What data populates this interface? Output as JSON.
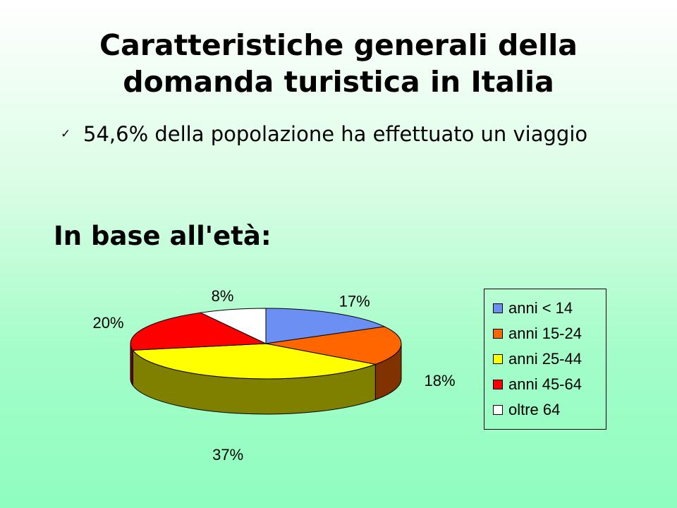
{
  "title": "Caratteristiche generali della domanda turistica in Italia",
  "bullet": {
    "icon": "check-icon",
    "text": "54,6% della popolazione ha effettuato un viaggio"
  },
  "subheading": "In base all'età:",
  "chart_data": {
    "type": "pie",
    "style": "3d",
    "categories": [
      "anni < 14",
      "anni 15-24",
      "anni 25-44",
      "anni 45-64",
      "oltre 64"
    ],
    "values": [
      17,
      18,
      37,
      20,
      8
    ],
    "labels": [
      "17%",
      "18%",
      "37%",
      "20%",
      "8%"
    ],
    "colors": [
      "#6c8ff4",
      "#ff6600",
      "#ffff00",
      "#ff0000",
      "#ffffff"
    ],
    "side_colors": [
      "#3a4f8a",
      "#803300",
      "#808000",
      "#800000",
      "#808080"
    ],
    "legend_position": "right"
  }
}
